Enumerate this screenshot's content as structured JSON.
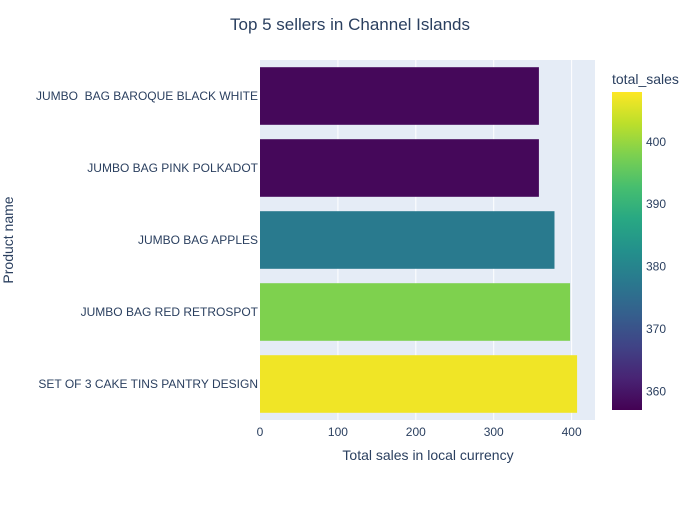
{
  "chart_data": {
    "type": "bar",
    "orientation": "horizontal",
    "title": "Top 5 sellers in Channel Islands",
    "xlabel": "Total sales in local currency",
    "ylabel": "Product name",
    "categories": [
      "JUMBO  BAG BAROQUE BLACK WHITE",
      "JUMBO BAG PINK POLKADOT",
      "JUMBO BAG APPLES",
      "JUMBO BAG RED RETROSPOT",
      "SET OF 3 CAKE TINS PANTRY DESIGN"
    ],
    "values": [
      358,
      358,
      378,
      398,
      407
    ],
    "xlim": [
      0,
      430
    ],
    "xticks": [
      0,
      100,
      200,
      300,
      400
    ],
    "grid": true,
    "colorbar": {
      "title": "total_sales",
      "range": [
        357,
        408
      ],
      "ticks": [
        360,
        370,
        380,
        390,
        400
      ],
      "colorscale": "viridis"
    },
    "colors": {
      "plot_background": "#e5ecf6",
      "grid": "#ffffff",
      "text": "#2a3f5f"
    }
  }
}
